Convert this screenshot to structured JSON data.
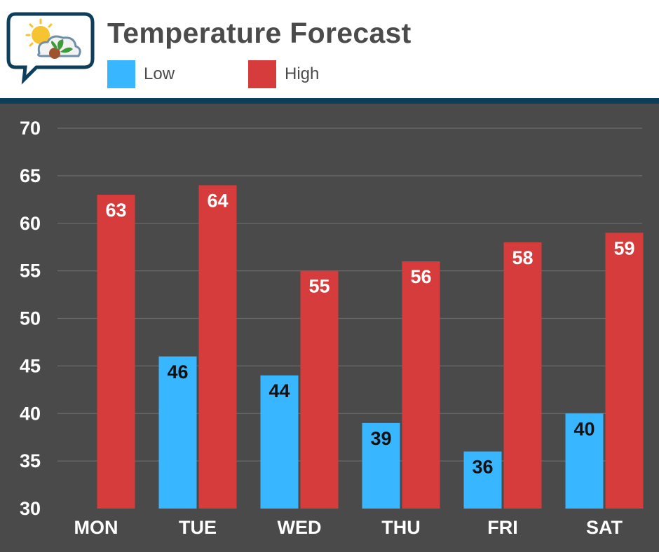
{
  "header": {
    "title": "Temperature Forecast"
  },
  "legend": [
    {
      "label": "Low",
      "color": "#38b6ff"
    },
    {
      "label": "High",
      "color": "#d63c3c"
    }
  ],
  "colors": {
    "plot_background": "#4a4a4a",
    "divider": "#0d3e5c",
    "title": "#4b4b4b",
    "grid": "#6a6a6a"
  },
  "chart_data": {
    "type": "bar",
    "title": "Temperature Forecast",
    "categories": [
      "MON",
      "TUE",
      "WED",
      "THU",
      "FRI",
      "SAT"
    ],
    "series": [
      {
        "name": "Low",
        "color": "#38b6ff",
        "values": [
          null,
          46,
          44,
          39,
          36,
          40
        ]
      },
      {
        "name": "High",
        "color": "#d63c3c",
        "values": [
          63,
          64,
          55,
          56,
          58,
          59
        ]
      }
    ],
    "ylim": [
      30,
      70
    ],
    "yticks": [
      30,
      35,
      40,
      45,
      50,
      55,
      60,
      65,
      70
    ],
    "xlabel": "",
    "ylabel": "",
    "grid": true,
    "legend_position": "top-left"
  }
}
